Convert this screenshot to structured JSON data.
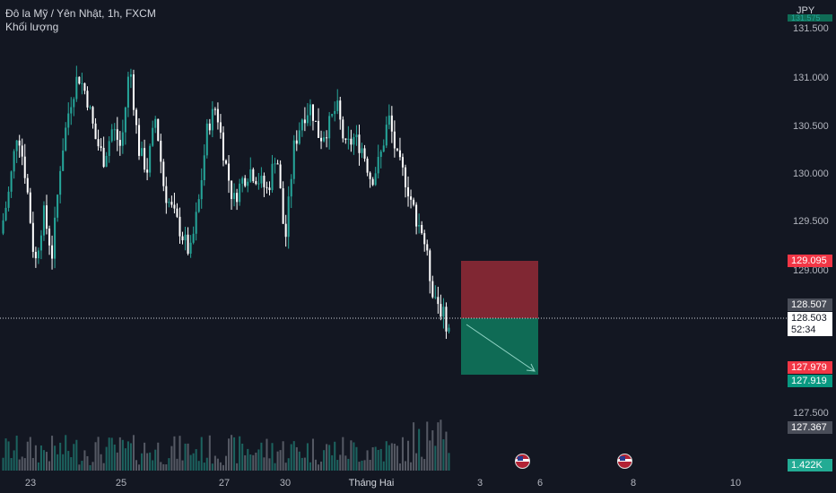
{
  "legend": {
    "title": "Đô la Mỹ / Yên Nhật, 1h, FXCM",
    "volume_label": "Khối lượng"
  },
  "axis": {
    "currency": "JPY",
    "ticks": [
      "131.500",
      "131.000",
      "130.500",
      "130.000",
      "129.500",
      "129.000",
      "127.500"
    ]
  },
  "badges": {
    "stop": "129.095",
    "prev_close": "128.507",
    "last": "128.503",
    "countdown": "52:34",
    "entry_low": "127.979",
    "target": "127.919",
    "volume_low": "127.367",
    "volume": "1.422K",
    "top_hidden": "131.575"
  },
  "time_labels": [
    "23",
    "25",
    "27",
    "30",
    "Tháng Hai",
    "3",
    "6",
    "8",
    "10"
  ],
  "colors": {
    "up": "#26a69a",
    "down": "#ffffff",
    "stop_zone": "#802733",
    "target_zone": "#0f6b55",
    "background": "#131722"
  },
  "chart_data": {
    "type": "candlestick",
    "symbol": "USDJPY",
    "timeframe": "1h",
    "ylim": [
      127.15,
      131.6
    ],
    "grid": false,
    "position": {
      "type": "short",
      "entry": 128.503,
      "stop": 129.095,
      "target": 127.919
    },
    "price_path": [
      [
        0,
        129.4
      ],
      [
        1,
        129.8
      ],
      [
        2,
        130.4
      ],
      [
        3,
        129.9
      ],
      [
        4,
        129.1
      ],
      [
        5,
        129.6
      ],
      [
        6,
        129.2
      ],
      [
        7,
        130.1
      ],
      [
        8,
        130.6
      ],
      [
        9,
        130.9
      ],
      [
        10,
        130.7
      ],
      [
        11,
        130.3
      ],
      [
        12,
        130.1
      ],
      [
        13,
        130.4
      ],
      [
        14,
        130.2
      ],
      [
        15,
        131.0
      ],
      [
        16,
        130.2
      ],
      [
        17,
        130.0
      ],
      [
        18,
        130.5
      ],
      [
        19,
        129.8
      ],
      [
        20,
        129.6
      ],
      [
        21,
        129.4
      ],
      [
        22,
        129.2
      ],
      [
        23,
        129.7
      ],
      [
        24,
        130.4
      ],
      [
        25,
        130.6
      ],
      [
        26,
        130.1
      ],
      [
        27,
        129.7
      ],
      [
        28,
        129.9
      ],
      [
        29,
        130.0
      ],
      [
        30,
        129.9
      ],
      [
        31,
        129.8
      ],
      [
        32,
        130.2
      ],
      [
        33,
        129.3
      ],
      [
        34,
        130.2
      ],
      [
        35,
        130.5
      ],
      [
        36,
        130.6
      ],
      [
        37,
        130.3
      ],
      [
        38,
        130.4
      ],
      [
        39,
        130.6
      ],
      [
        40,
        130.2
      ],
      [
        41,
        130.3
      ],
      [
        42,
        130.2
      ],
      [
        43,
        129.9
      ],
      [
        44,
        130.1
      ],
      [
        45,
        130.5
      ],
      [
        46,
        130.1
      ],
      [
        47,
        129.9
      ],
      [
        48,
        129.6
      ],
      [
        49,
        129.4
      ],
      [
        50,
        128.9
      ],
      [
        51,
        128.7
      ],
      [
        52,
        128.5
      ]
    ]
  }
}
